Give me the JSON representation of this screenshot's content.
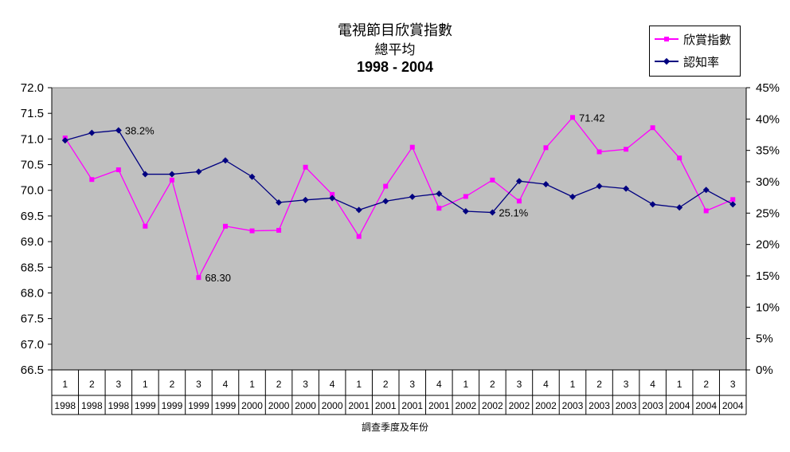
{
  "title": {
    "line1": "電視節目欣賞指數",
    "line2": "總平均",
    "line3": "1998 - 2004"
  },
  "colors": {
    "plot_background": "#c0c0c0",
    "appreciation_series": "#ff00ff",
    "awareness_series": "#000080"
  },
  "legend": {
    "items": [
      "欣賞指數",
      "認知率"
    ],
    "placement": "top-right"
  },
  "chart_data": {
    "type": "line",
    "title": "電視節目欣賞指數 總平均 1998 - 2004",
    "xlabel": "調查季度及年份",
    "categories": [
      {
        "quarter": "1",
        "year": "1998"
      },
      {
        "quarter": "2",
        "year": "1998"
      },
      {
        "quarter": "3",
        "year": "1998"
      },
      {
        "quarter": "1",
        "year": "1999"
      },
      {
        "quarter": "2",
        "year": "1999"
      },
      {
        "quarter": "3",
        "year": "1999"
      },
      {
        "quarter": "4",
        "year": "1999"
      },
      {
        "quarter": "1",
        "year": "2000"
      },
      {
        "quarter": "2",
        "year": "2000"
      },
      {
        "quarter": "3",
        "year": "2000"
      },
      {
        "quarter": "4",
        "year": "2000"
      },
      {
        "quarter": "1",
        "year": "2001"
      },
      {
        "quarter": "2",
        "year": "2001"
      },
      {
        "quarter": "3",
        "year": "2001"
      },
      {
        "quarter": "4",
        "year": "2001"
      },
      {
        "quarter": "1",
        "year": "2002"
      },
      {
        "quarter": "2",
        "year": "2002"
      },
      {
        "quarter": "3",
        "year": "2002"
      },
      {
        "quarter": "4",
        "year": "2002"
      },
      {
        "quarter": "1",
        "year": "2003"
      },
      {
        "quarter": "2",
        "year": "2003"
      },
      {
        "quarter": "3",
        "year": "2003"
      },
      {
        "quarter": "4",
        "year": "2003"
      },
      {
        "quarter": "1",
        "year": "2004"
      },
      {
        "quarter": "2",
        "year": "2004"
      },
      {
        "quarter": "3",
        "year": "2004"
      }
    ],
    "y_left": {
      "range": [
        66.5,
        72.0
      ],
      "ticks": [
        "66.5",
        "67.0",
        "67.5",
        "68.0",
        "68.5",
        "69.0",
        "69.5",
        "70.0",
        "70.5",
        "71.0",
        "71.5",
        "72.0"
      ]
    },
    "y_right": {
      "range": [
        0,
        45
      ],
      "ticks": [
        "0%",
        "5%",
        "10%",
        "15%",
        "20%",
        "25%",
        "30%",
        "35%",
        "40%",
        "45%"
      ]
    },
    "grid": false,
    "series": [
      {
        "name": "欣賞指數",
        "axis": "left",
        "color": "#ff00ff",
        "marker": "square",
        "values": [
          71.02,
          70.21,
          70.4,
          69.3,
          70.2,
          68.3,
          69.3,
          69.21,
          69.22,
          70.45,
          69.92,
          69.1,
          70.08,
          70.84,
          69.65,
          69.88,
          70.2,
          69.79,
          70.83,
          71.42,
          70.75,
          70.8,
          71.22,
          70.63,
          69.6,
          69.82
        ]
      },
      {
        "name": "認知率",
        "axis": "right",
        "color": "#000080",
        "marker": "diamond",
        "values": [
          36.6,
          37.8,
          38.2,
          31.2,
          31.2,
          31.6,
          33.4,
          30.8,
          26.7,
          27.1,
          27.4,
          25.5,
          26.9,
          27.6,
          28.1,
          25.3,
          25.1,
          30.1,
          29.6,
          27.6,
          29.3,
          28.9,
          26.4,
          25.9,
          28.7,
          26.4
        ]
      }
    ],
    "annotations": [
      {
        "series": 1,
        "index": 2,
        "text": "38.2%"
      },
      {
        "series": 0,
        "index": 5,
        "text": "68.30"
      },
      {
        "series": 1,
        "index": 16,
        "text": "25.1%"
      },
      {
        "series": 0,
        "index": 19,
        "text": "71.42"
      }
    ]
  }
}
